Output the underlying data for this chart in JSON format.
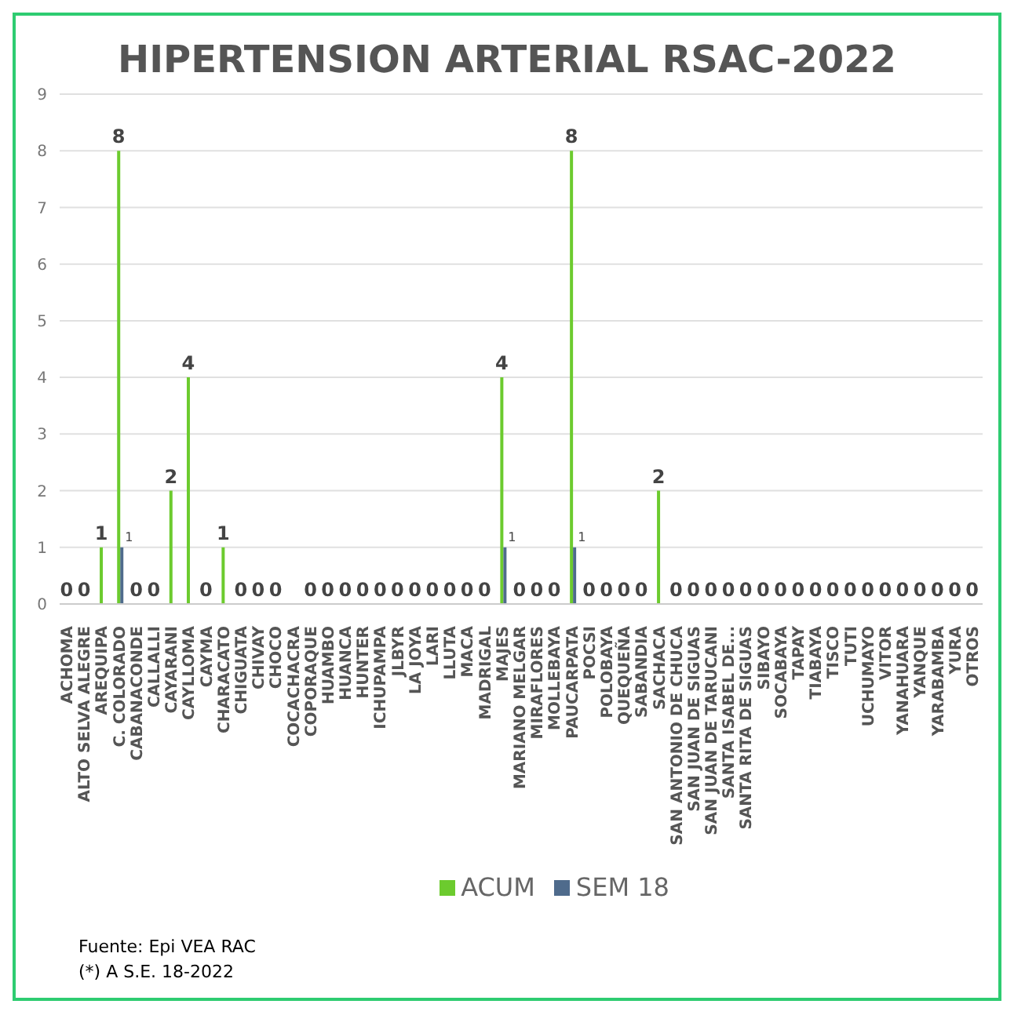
{
  "chart_data": {
    "type": "bar",
    "title": "HIPERTENSION ARTERIAL RSAC-2022",
    "categories": [
      "ACHOMA",
      "ALTO SELVA ALEGRE",
      "AREQUIPA",
      "C. COLORADO",
      "CABANACONDE",
      "CALLALLI",
      "CAYARANI",
      "CAYLLOMA",
      "CAYMA",
      "CHARACATO",
      "CHIGUATA",
      "CHIVAY",
      "CHOCO",
      "COCACHACRA",
      "COPORAQUE",
      "HUAMBO",
      "HUANCA",
      "HUNTER",
      "ICHUPAMPA",
      "JLBYR",
      "LA JOYA",
      "LARI",
      "LLUTA",
      "MACA",
      "MADRIGAL",
      "MAJES",
      "MARIANO MELGAR",
      "MIRAFLORES",
      "MOLLEBAYA",
      "PAUCARPATA",
      "POCSI",
      "POLOBAYA",
      "QUEQUEÑA",
      "SABANDIA",
      "SACHACA",
      "SAN ANTONIO DE CHUCA",
      "SAN JUAN DE SIGUAS",
      "SAN JUAN DE TARUCANI",
      "SANTA ISABEL DE...",
      "SANTA RITA DE SIGUAS",
      "SIBAYO",
      "SOCABAYA",
      "TAPAY",
      "TIABAYA",
      "TISCO",
      "TUTI",
      "UCHUMAYO",
      "VITOR",
      "YANAHUARA",
      "YANQUE",
      "YARABAMBA",
      "YURA",
      "OTROS"
    ],
    "series": [
      {
        "name": "ACUM",
        "color": "#6ccb2e",
        "values": [
          0,
          0,
          1,
          8,
          0,
          0,
          2,
          4,
          0,
          1,
          0,
          0,
          0,
          null,
          0,
          0,
          0,
          0,
          0,
          0,
          0,
          0,
          0,
          0,
          0,
          4,
          0,
          0,
          0,
          8,
          0,
          0,
          0,
          0,
          2,
          0,
          0,
          0,
          0,
          0,
          0,
          0,
          0,
          0,
          0,
          0,
          0,
          0,
          0,
          0,
          0,
          0,
          0
        ]
      },
      {
        "name": "SEM 18",
        "color": "#4f6b8c",
        "values": [
          null,
          null,
          null,
          1,
          null,
          null,
          null,
          null,
          null,
          null,
          null,
          null,
          null,
          null,
          null,
          null,
          null,
          null,
          null,
          null,
          null,
          null,
          null,
          null,
          null,
          1,
          null,
          null,
          null,
          1,
          null,
          null,
          null,
          null,
          null,
          null,
          null,
          null,
          null,
          null,
          null,
          null,
          null,
          null,
          null,
          null,
          null,
          null,
          null,
          null,
          null,
          null,
          null
        ]
      }
    ],
    "ylim": [
      0,
      9
    ],
    "yticks": [
      0,
      1,
      2,
      3,
      4,
      5,
      6,
      7,
      8,
      9
    ],
    "grid": "y",
    "legend": "bottom",
    "data_labels": true,
    "annotations": [
      "Fuente:  Epi VEA RAC",
      "(*) A S.E. 18-2022"
    ]
  }
}
